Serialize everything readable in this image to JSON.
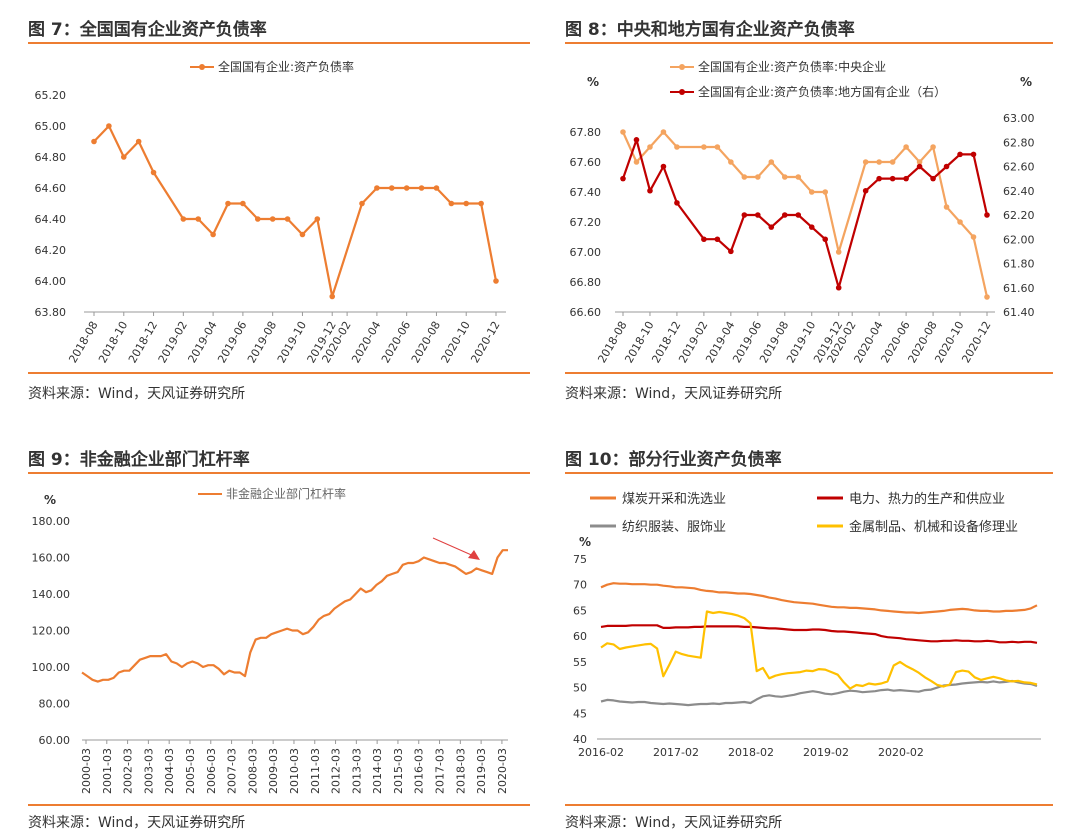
{
  "panels": {
    "p7": {
      "title": "图 7：全国国有企业资产负债率",
      "source": "资料来源：Wind，天风证券研究所"
    },
    "p8": {
      "title": "图 8：中央和地方国有企业资产负债率",
      "source": "资料来源：Wind，天风证券研究所"
    },
    "p9": {
      "title": "图 9：非金融企业部门杠杆率",
      "source": "资料来源：Wind，天风证券研究所"
    },
    "p10": {
      "title": "图 10：部分行业资产负债率",
      "source": "资料来源：Wind，天风证券研究所"
    }
  },
  "chart_data": [
    {
      "id": "p7",
      "type": "line",
      "legend_position": "top-center",
      "colors": [
        "#ED7D31"
      ],
      "x": [
        "2018-08",
        "2018-09",
        "2018-10",
        "2018-11",
        "2018-12",
        "2019-01",
        "2019-02",
        "2019-03",
        "2019-04",
        "2019-05",
        "2019-06",
        "2019-07",
        "2019-08",
        "2019-09",
        "2019-10",
        "2019-11",
        "2019-12",
        "2020-02",
        "2020-03",
        "2020-04",
        "2020-05",
        "2020-06",
        "2020-07",
        "2020-08",
        "2020-09",
        "2020-10",
        "2020-11",
        "2020-12"
      ],
      "xticks": [
        "2018-08",
        "2018-10",
        "2018-12",
        "2019-02",
        "2019-04",
        "2019-06",
        "2019-08",
        "2019-10",
        "2019-12",
        "2020-02",
        "2020-04",
        "2020-06",
        "2020-08",
        "2020-10",
        "2020-12"
      ],
      "series": [
        {
          "name": "全国国有企业:资产负债率",
          "markers": true,
          "values": [
            64.9,
            65.0,
            64.8,
            64.9,
            64.7,
            null,
            64.4,
            64.4,
            64.3,
            64.5,
            64.5,
            64.4,
            64.4,
            64.4,
            64.3,
            64.4,
            63.9,
            null,
            64.5,
            64.6,
            64.6,
            64.6,
            64.6,
            64.6,
            64.5,
            64.5,
            64.5,
            64.0
          ]
        }
      ],
      "ylim": [
        63.8,
        65.2
      ],
      "yticks": [
        "63.80",
        "64.00",
        "64.20",
        "64.40",
        "64.60",
        "64.80",
        "65.00",
        "65.20"
      ]
    },
    {
      "id": "p8",
      "type": "line",
      "legend_position": "top-center",
      "colors": [
        "#F4A460",
        "#C00000"
      ],
      "left_unit": "%",
      "right_unit": "%",
      "x": [
        "2018-08",
        "2018-09",
        "2018-10",
        "2018-11",
        "2018-12",
        "2019-01",
        "2019-02",
        "2019-03",
        "2019-04",
        "2019-05",
        "2019-06",
        "2019-07",
        "2019-08",
        "2019-09",
        "2019-10",
        "2019-11",
        "2019-12",
        "2020-02",
        "2020-03",
        "2020-04",
        "2020-05",
        "2020-06",
        "2020-07",
        "2020-08",
        "2020-09",
        "2020-10",
        "2020-11",
        "2020-12"
      ],
      "xticks": [
        "2018-08",
        "2018-10",
        "2018-12",
        "2019-02",
        "2019-04",
        "2019-06",
        "2019-08",
        "2019-10",
        "2019-12",
        "2020-02",
        "2020-04",
        "2020-06",
        "2020-08",
        "2020-10",
        "2020-12"
      ],
      "series": [
        {
          "name": "全国国有企业:资产负债率:中央企业",
          "axis": "left",
          "markers": true,
          "values": [
            67.8,
            67.6,
            67.7,
            67.8,
            67.7,
            null,
            67.7,
            67.7,
            67.6,
            67.5,
            67.5,
            67.6,
            67.5,
            67.5,
            67.4,
            67.4,
            67.0,
            null,
            67.6,
            67.6,
            67.6,
            67.7,
            67.6,
            67.7,
            67.3,
            67.2,
            67.1,
            66.7
          ]
        },
        {
          "name": "全国国有企业:资产负债率:地方国有企业（右）",
          "axis": "right",
          "markers": true,
          "values": [
            62.5,
            62.82,
            62.4,
            62.6,
            62.3,
            null,
            62.0,
            62.0,
            61.9,
            62.2,
            62.2,
            62.1,
            62.2,
            62.2,
            62.1,
            62.0,
            61.6,
            null,
            62.4,
            62.5,
            62.5,
            62.5,
            62.6,
            62.5,
            62.6,
            62.7,
            62.7,
            62.2
          ]
        }
      ],
      "ylim": [
        66.6,
        67.9
      ],
      "yticks": [
        "66.60",
        "66.80",
        "67.00",
        "67.20",
        "67.40",
        "67.60",
        "67.80"
      ],
      "y2lim": [
        61.4,
        63.0
      ],
      "y2ticks": [
        "61.40",
        "61.60",
        "61.80",
        "62.00",
        "62.20",
        "62.40",
        "62.60",
        "62.80",
        "63.00"
      ]
    },
    {
      "id": "p9",
      "type": "line",
      "legend_position": "top-center",
      "colors": [
        "#ED7D31"
      ],
      "left_unit": "%",
      "annotation": "arrow pointing to latest value",
      "xticks": [
        "2000-03",
        "2001-03",
        "2002-03",
        "2003-03",
        "2004-03",
        "2005-03",
        "2006-03",
        "2007-03",
        "2008-03",
        "2009-03",
        "2010-03",
        "2011-03",
        "2012-03",
        "2013-03",
        "2014-03",
        "2015-03",
        "2016-03",
        "2017-03",
        "2018-03",
        "2019-03",
        "2020-03"
      ],
      "series": [
        {
          "name": "非金融企业部门杠杆率",
          "markers": false,
          "values": [
            97,
            95,
            93,
            92,
            93,
            93,
            94,
            97,
            98,
            98,
            101,
            104,
            105,
            106,
            106,
            106,
            107,
            103,
            102,
            100,
            102,
            103,
            102,
            100,
            101,
            101,
            99,
            96,
            98,
            97,
            97,
            95,
            108,
            115,
            116,
            116,
            118,
            119,
            120,
            121,
            120,
            120,
            118,
            119,
            122,
            126,
            128,
            129,
            132,
            134,
            136,
            137,
            140,
            143,
            141,
            142,
            145,
            147,
            150,
            151,
            152,
            156,
            157,
            157,
            158,
            160,
            159,
            158,
            157,
            157,
            156,
            155,
            153,
            151,
            152,
            154,
            153,
            152,
            151,
            160,
            164,
            164
          ]
        }
      ],
      "ylim": [
        60,
        180
      ],
      "yticks": [
        "60.00",
        "80.00",
        "100.00",
        "120.00",
        "140.00",
        "160.00",
        "180.00"
      ]
    },
    {
      "id": "p10",
      "type": "line",
      "legend_position": "top",
      "colors": [
        "#ED7D31",
        "#C00000",
        "#8C8C8C",
        "#FFC000"
      ],
      "left_unit": "%",
      "xticks": [
        "2016-02",
        "2017-02",
        "2018-02",
        "2019-02",
        "2020-02"
      ],
      "series": [
        {
          "name": "煤炭开采和洗选业",
          "values": [
            69.5,
            70,
            70.3,
            70.2,
            70.2,
            70.1,
            70.1,
            70.1,
            70.0,
            70.0,
            69.8,
            69.7,
            69.5,
            69.5,
            69.4,
            69.3,
            69.0,
            68.8,
            68.7,
            68.5,
            68.5,
            68.4,
            68.3,
            68.3,
            68.2,
            68.0,
            67.8,
            67.5,
            67.3,
            67.0,
            66.8,
            66.6,
            66.5,
            66.4,
            66.3,
            66.1,
            65.9,
            65.7,
            65.6,
            65.6,
            65.5,
            65.5,
            65.4,
            65.3,
            65.2,
            65.0,
            64.9,
            64.8,
            64.7,
            64.6,
            64.6,
            64.5,
            64.6,
            64.7,
            64.8,
            64.9,
            65.1,
            65.2,
            65.3,
            65.2,
            65.0,
            64.9,
            64.9,
            64.8,
            64.8,
            64.9,
            64.9,
            65.0,
            65.1,
            65.4,
            66.0
          ]
        },
        {
          "name": "电力、热力的生产和供应业",
          "values": [
            61.8,
            62.0,
            62.0,
            62.0,
            62.0,
            62.1,
            62.1,
            62.1,
            62.1,
            62.1,
            61.6,
            61.6,
            61.7,
            61.7,
            61.7,
            61.8,
            61.8,
            61.9,
            61.9,
            61.9,
            61.9,
            61.9,
            61.9,
            61.8,
            61.8,
            61.7,
            61.6,
            61.5,
            61.5,
            61.4,
            61.3,
            61.2,
            61.2,
            61.2,
            61.3,
            61.3,
            61.2,
            61.0,
            60.9,
            60.9,
            60.8,
            60.7,
            60.6,
            60.5,
            60.4,
            60.0,
            59.8,
            59.7,
            59.6,
            59.4,
            59.3,
            59.2,
            59.1,
            59.0,
            59.0,
            59.1,
            59.1,
            59.2,
            59.1,
            59.1,
            59.0,
            59.0,
            59.1,
            59.0,
            58.8,
            58.8,
            58.9,
            58.8,
            58.9,
            58.9,
            58.7
          ]
        },
        {
          "name": "纺织服装、服饰业",
          "values": [
            47.3,
            47.6,
            47.5,
            47.3,
            47.2,
            47.1,
            47.2,
            47.2,
            47.0,
            46.9,
            46.8,
            46.9,
            46.8,
            46.7,
            46.6,
            46.7,
            46.8,
            46.8,
            46.9,
            46.8,
            47.0,
            47.0,
            47.1,
            47.2,
            47.0,
            47.7,
            48.3,
            48.5,
            48.3,
            48.2,
            48.4,
            48.6,
            48.9,
            49.1,
            49.3,
            49.1,
            48.8,
            48.7,
            48.9,
            49.2,
            49.4,
            49.3,
            49.1,
            49.2,
            49.3,
            49.5,
            49.6,
            49.4,
            49.5,
            49.4,
            49.3,
            49.2,
            49.5,
            49.6,
            50.0,
            50.4,
            50.5,
            50.6,
            50.8,
            50.9,
            51.0,
            51.1,
            51.0,
            51.2,
            51.0,
            51.1,
            51.3,
            51.0,
            50.8,
            50.7,
            50.3
          ]
        },
        {
          "name": "金属制品、机械和设备修理业",
          "values": [
            57.8,
            58.6,
            58.4,
            57.5,
            57.8,
            58.0,
            58.2,
            58.4,
            58.5,
            57.6,
            52.2,
            54.5,
            57.0,
            56.5,
            56.2,
            56.0,
            55.8,
            64.8,
            64.5,
            64.7,
            64.5,
            64.3,
            64.0,
            63.5,
            62.5,
            53.2,
            53.8,
            51.8,
            52.3,
            52.6,
            52.8,
            52.9,
            53.0,
            53.3,
            53.2,
            53.6,
            53.5,
            53.0,
            52.5,
            51.0,
            49.8,
            50.5,
            50.3,
            50.8,
            50.6,
            50.8,
            51.2,
            54.3,
            55.0,
            54.2,
            53.6,
            52.9,
            52.0,
            51.3,
            50.5,
            50.2,
            50.6,
            53.0,
            53.3,
            53.1,
            52.0,
            51.5,
            51.8,
            52.1,
            51.8,
            51.4,
            51.2,
            51.3,
            51.0,
            50.9,
            50.6
          ]
        }
      ],
      "ylim": [
        40,
        75
      ],
      "yticks": [
        "40",
        "45",
        "50",
        "55",
        "60",
        "65",
        "70",
        "75"
      ]
    }
  ]
}
